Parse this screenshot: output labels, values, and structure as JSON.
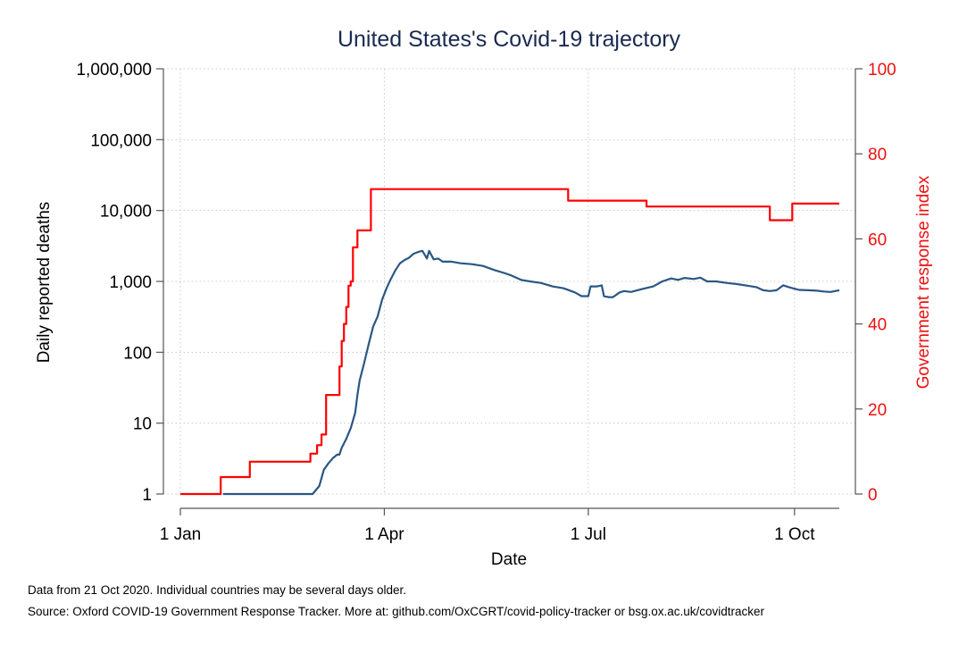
{
  "chart_data": {
    "type": "line",
    "title": "United States's Covid-19 trajectory",
    "xlabel": "Date",
    "ylabel_left": "Daily reported deaths",
    "ylabel_right": "Government response index",
    "x_range": [
      "2020-01-01",
      "2020-10-21"
    ],
    "x_ticks": [
      {
        "date": "2020-01-01",
        "label": "1 Jan"
      },
      {
        "date": "2020-04-01",
        "label": "1 Apr"
      },
      {
        "date": "2020-07-01",
        "label": "1 Jul"
      },
      {
        "date": "2020-10-01",
        "label": "1 Oct"
      }
    ],
    "y_left": {
      "scale": "log",
      "range": [
        1,
        1000000
      ],
      "ticks": [
        {
          "value": 1,
          "label": "1"
        },
        {
          "value": 10,
          "label": "10"
        },
        {
          "value": 100,
          "label": "100"
        },
        {
          "value": 1000,
          "label": "1,000"
        },
        {
          "value": 10000,
          "label": "10,000"
        },
        {
          "value": 100000,
          "label": "100,000"
        },
        {
          "value": 1000000,
          "label": "1,000,000"
        }
      ]
    },
    "y_right": {
      "scale": "linear",
      "range": [
        0,
        100
      ],
      "ticks": [
        {
          "value": 0,
          "label": "0"
        },
        {
          "value": 20,
          "label": "20"
        },
        {
          "value": 40,
          "label": "40"
        },
        {
          "value": 60,
          "label": "60"
        },
        {
          "value": 80,
          "label": "80"
        },
        {
          "value": 100,
          "label": "100"
        }
      ]
    },
    "grid": true,
    "series": [
      {
        "axis": "left",
        "color": "#2a5783",
        "points": [
          [
            "2020-01-20",
            1
          ],
          [
            "2020-02-29",
            1
          ],
          [
            "2020-03-03",
            1.3
          ],
          [
            "2020-03-05",
            2.2
          ],
          [
            "2020-03-07",
            2.7
          ],
          [
            "2020-03-09",
            3.2
          ],
          [
            "2020-03-11",
            3.6
          ],
          [
            "2020-03-12",
            3.6
          ],
          [
            "2020-03-13",
            4.5
          ],
          [
            "2020-03-15",
            6
          ],
          [
            "2020-03-17",
            8.5
          ],
          [
            "2020-03-19",
            14
          ],
          [
            "2020-03-20",
            25
          ],
          [
            "2020-03-21",
            40
          ],
          [
            "2020-03-23",
            70
          ],
          [
            "2020-03-25",
            130
          ],
          [
            "2020-03-27",
            230
          ],
          [
            "2020-03-29",
            320
          ],
          [
            "2020-03-31",
            550
          ],
          [
            "2020-04-02",
            800
          ],
          [
            "2020-04-04",
            1100
          ],
          [
            "2020-04-06",
            1450
          ],
          [
            "2020-04-08",
            1800
          ],
          [
            "2020-04-10",
            2000
          ],
          [
            "2020-04-12",
            2150
          ],
          [
            "2020-04-14",
            2450
          ],
          [
            "2020-04-16",
            2600
          ],
          [
            "2020-04-18",
            2700
          ],
          [
            "2020-04-20",
            2100
          ],
          [
            "2020-04-21",
            2700
          ],
          [
            "2020-04-23",
            2050
          ],
          [
            "2020-04-25",
            2100
          ],
          [
            "2020-04-27",
            1900
          ],
          [
            "2020-05-01",
            1900
          ],
          [
            "2020-05-05",
            1800
          ],
          [
            "2020-05-10",
            1750
          ],
          [
            "2020-05-15",
            1650
          ],
          [
            "2020-05-20",
            1450
          ],
          [
            "2020-05-25",
            1300
          ],
          [
            "2020-05-28",
            1200
          ],
          [
            "2020-06-01",
            1050
          ],
          [
            "2020-06-05",
            1000
          ],
          [
            "2020-06-10",
            950
          ],
          [
            "2020-06-15",
            850
          ],
          [
            "2020-06-20",
            800
          ],
          [
            "2020-06-25",
            700
          ],
          [
            "2020-06-28",
            620
          ],
          [
            "2020-07-01",
            620
          ],
          [
            "2020-07-02",
            850
          ],
          [
            "2020-07-05",
            850
          ],
          [
            "2020-07-07",
            880
          ],
          [
            "2020-07-08",
            620
          ],
          [
            "2020-07-10",
            600
          ],
          [
            "2020-07-12",
            600
          ],
          [
            "2020-07-15",
            700
          ],
          [
            "2020-07-17",
            730
          ],
          [
            "2020-07-20",
            710
          ],
          [
            "2020-07-25",
            780
          ],
          [
            "2020-07-30",
            850
          ],
          [
            "2020-08-03",
            1000
          ],
          [
            "2020-08-07",
            1100
          ],
          [
            "2020-08-10",
            1050
          ],
          [
            "2020-08-13",
            1120
          ],
          [
            "2020-08-17",
            1080
          ],
          [
            "2020-08-20",
            1130
          ],
          [
            "2020-08-23",
            1000
          ],
          [
            "2020-08-27",
            1000
          ],
          [
            "2020-09-01",
            950
          ],
          [
            "2020-09-05",
            920
          ],
          [
            "2020-09-10",
            870
          ],
          [
            "2020-09-14",
            830
          ],
          [
            "2020-09-17",
            750
          ],
          [
            "2020-09-20",
            730
          ],
          [
            "2020-09-23",
            750
          ],
          [
            "2020-09-26",
            880
          ],
          [
            "2020-09-29",
            820
          ],
          [
            "2020-10-03",
            760
          ],
          [
            "2020-10-07",
            750
          ],
          [
            "2020-10-11",
            740
          ],
          [
            "2020-10-14",
            720
          ],
          [
            "2020-10-17",
            710
          ],
          [
            "2020-10-21",
            750
          ]
        ]
      },
      {
        "axis": "right",
        "color": "#ff0000",
        "points": [
          [
            "2020-01-01",
            0
          ],
          [
            "2020-01-19",
            0
          ],
          [
            "2020-01-19",
            4
          ],
          [
            "2020-02-01",
            4
          ],
          [
            "2020-02-01",
            7.6
          ],
          [
            "2020-02-28",
            7.6
          ],
          [
            "2020-02-28",
            9.5
          ],
          [
            "2020-03-02",
            9.5
          ],
          [
            "2020-03-02",
            11.5
          ],
          [
            "2020-03-04",
            11.5
          ],
          [
            "2020-03-04",
            14
          ],
          [
            "2020-03-06",
            14
          ],
          [
            "2020-03-06",
            23.3
          ],
          [
            "2020-03-12",
            23.3
          ],
          [
            "2020-03-12",
            30
          ],
          [
            "2020-03-13",
            30
          ],
          [
            "2020-03-13",
            36
          ],
          [
            "2020-03-14",
            36
          ],
          [
            "2020-03-14",
            40
          ],
          [
            "2020-03-15",
            40
          ],
          [
            "2020-03-15",
            44
          ],
          [
            "2020-03-16",
            44
          ],
          [
            "2020-03-16",
            49
          ],
          [
            "2020-03-17",
            49
          ],
          [
            "2020-03-17",
            50
          ],
          [
            "2020-03-18",
            50
          ],
          [
            "2020-03-18",
            58
          ],
          [
            "2020-03-20",
            58
          ],
          [
            "2020-03-20",
            62
          ],
          [
            "2020-03-26",
            62
          ],
          [
            "2020-03-26",
            71.7
          ],
          [
            "2020-06-22",
            71.7
          ],
          [
            "2020-06-22",
            69
          ],
          [
            "2020-07-27",
            69
          ],
          [
            "2020-07-27",
            67.6
          ],
          [
            "2020-09-20",
            67.6
          ],
          [
            "2020-09-20",
            64.4
          ],
          [
            "2020-09-30",
            64.4
          ],
          [
            "2020-09-30",
            68.3
          ],
          [
            "2020-10-21",
            68.3
          ]
        ]
      }
    ]
  },
  "footer": {
    "note": "Data from 21 Oct 2020. Individual countries may be several days older.",
    "source": "Source: Oxford COVID-19 Government Response Tracker. More at: github.com/OxCGRT/covid-policy-tracker or bsg.ox.ac.uk/covidtracker"
  }
}
